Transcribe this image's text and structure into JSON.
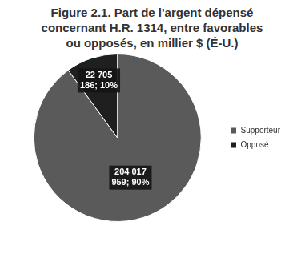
{
  "chart_data": {
    "type": "pie",
    "title": "Figure 2.1. Part de l'argent dépensé concernant H.R. 1314, entre favorables ou opposés, en millier $ (É-U.)",
    "categories": [
      "Supporteur",
      "Opposé"
    ],
    "values": [
      204017959,
      22705186
    ],
    "value_labels": [
      "204 017 959; 90%",
      "22 705 186; 10%"
    ],
    "colors": [
      "#5a5a5a",
      "#1f1f1f"
    ],
    "legend": "right",
    "data_labels": true
  }
}
